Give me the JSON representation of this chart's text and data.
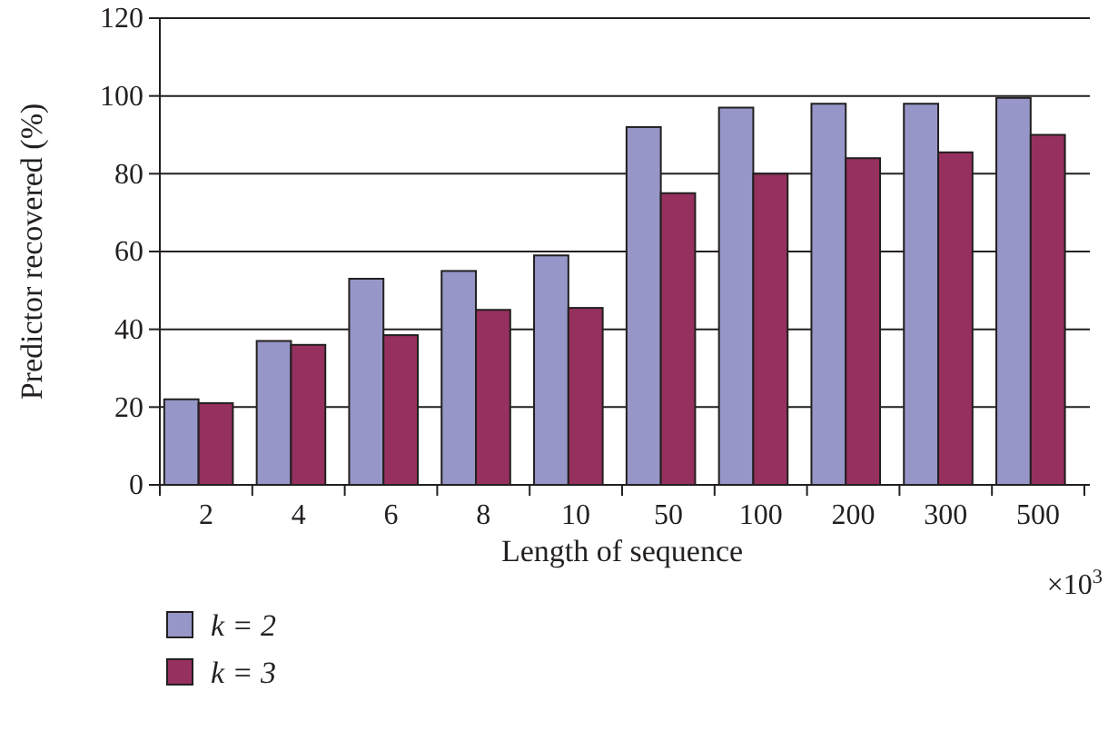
{
  "chart_data": {
    "type": "bar",
    "xlabel": "Length of sequence",
    "ylabel": "Predictor recovered (%)",
    "categories": [
      "2",
      "4",
      "6",
      "8",
      "10",
      "50",
      "100",
      "200",
      "300",
      "500"
    ],
    "series": [
      {
        "name": "k = 2",
        "color": "#9696c8",
        "values": [
          22,
          37,
          53,
          55,
          59,
          92,
          97,
          98,
          98,
          99.5
        ]
      },
      {
        "name": "k = 3",
        "color": "#96305e",
        "values": [
          21,
          36,
          38.5,
          45,
          45.5,
          75,
          80,
          84,
          85.5,
          90
        ]
      }
    ],
    "ylim": [
      0,
      120
    ],
    "yticks": [
      0,
      20,
      40,
      60,
      80,
      100,
      120
    ],
    "grid": "y",
    "legend": "bottom left",
    "annotations": [
      "×10$^{3}$"
    ]
  }
}
